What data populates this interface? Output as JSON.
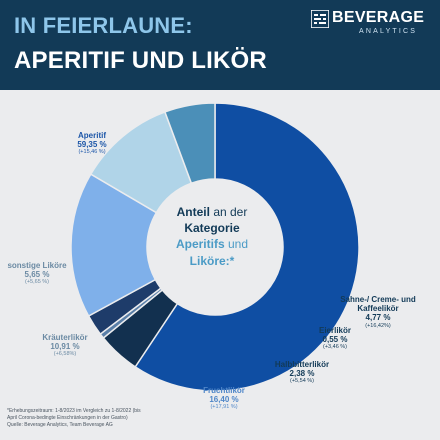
{
  "header": {
    "title_line1": "IN FEIERLAUNE:",
    "title_line2": "APERITIF UND LIKÖR"
  },
  "logo": {
    "brand": "BEVERAGE",
    "sub": "ANALYTICS",
    "mark_icon": "beverage-analytics-logo-icon",
    "brand_color": "#ffffff"
  },
  "center_label": {
    "w1": "Anteil",
    "w2": " an der",
    "w3": "Kategorie",
    "w4": "Aperitifs",
    "w5": " und",
    "w6": "Liköre:*"
  },
  "chart_data": {
    "type": "pie",
    "variant": "donut",
    "title": "IN FEIERLAUNE: APERITIF UND LIKÖR",
    "slices": [
      {
        "name": "Aperitif",
        "value": 59.35,
        "value_label": "59,35 %",
        "change": "(+15,46 %)",
        "color": "#0f4ea3"
      },
      {
        "name": "Sahne-/ Creme- und Kaffeelikör",
        "value": 4.77,
        "value_label": "4,77 %",
        "change": "(+16,42%)",
        "color": "#12304f"
      },
      {
        "name": "Eierlikör",
        "value": 0.55,
        "value_label": "0,55 %",
        "change": "(+3,46 %)",
        "color": "#5a7fa8"
      },
      {
        "name": "Halbbitterlikör",
        "value": 2.38,
        "value_label": "2,38 %",
        "change": "(+5,54 %)",
        "color": "#1e3c6a"
      },
      {
        "name": "Fruchtlikör",
        "value": 16.4,
        "value_label": "16,40 %",
        "change": "(+17,91 %)",
        "color": "#7fb0ea"
      },
      {
        "name": "Kräuterlikör",
        "value": 10.91,
        "value_label": "10,91 %",
        "change": "(+6,58%)",
        "color": "#b0d4e8"
      },
      {
        "name": "sonstige Liköre",
        "value": 5.65,
        "value_label": "5,65 %",
        "change": "(+5,65 %)",
        "color": "#4b8fb8"
      }
    ],
    "start_angle_deg": 270,
    "direction": "clockwise"
  },
  "footnote": {
    "line1": "*Erhebungszeitraum: 1-8/2023 im Vergleich zu 1-8/2022 (bis",
    "line2": "April Corona-bedingte Einschränkungen in der Gastro)",
    "line3": "Quelle: Beverage Analytics, Team Beverage AG"
  }
}
